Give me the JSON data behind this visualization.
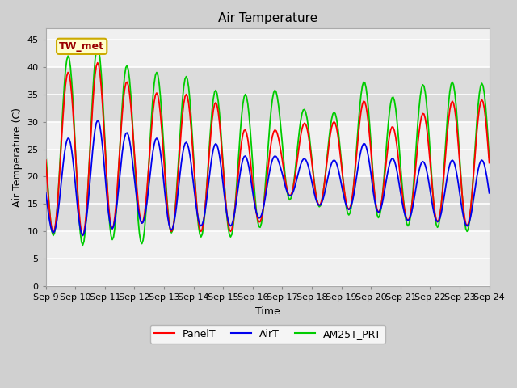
{
  "title": "Air Temperature",
  "xlabel": "Time",
  "ylabel": "Air Temperature (C)",
  "ylim": [
    0,
    47
  ],
  "yticks": [
    0,
    5,
    10,
    15,
    20,
    25,
    30,
    35,
    40,
    45
  ],
  "xtick_labels": [
    "Sep 9",
    "Sep 10",
    "Sep 11",
    "Sep 12",
    "Sep 13",
    "Sep 14",
    "Sep 15",
    "Sep 16",
    "Sep 17",
    "Sep 18",
    "Sep 19",
    "Sep 20",
    "Sep 21",
    "Sep 22",
    "Sep 23",
    "Sep 24"
  ],
  "annotation_text": "TW_met",
  "legend_labels": [
    "PanelT",
    "AirT",
    "AM25T_PRT"
  ],
  "legend_colors": [
    "red",
    "#0000cc",
    "#00cc00"
  ],
  "title_fontsize": 11,
  "label_fontsize": 9,
  "tick_fontsize": 8,
  "band_ranges": [
    [
      30,
      40
    ],
    [
      10,
      20
    ]
  ],
  "band_color": "#e8e8e8",
  "fig_bg": "#d0d0d0",
  "plot_bg": "#f0f0f0"
}
